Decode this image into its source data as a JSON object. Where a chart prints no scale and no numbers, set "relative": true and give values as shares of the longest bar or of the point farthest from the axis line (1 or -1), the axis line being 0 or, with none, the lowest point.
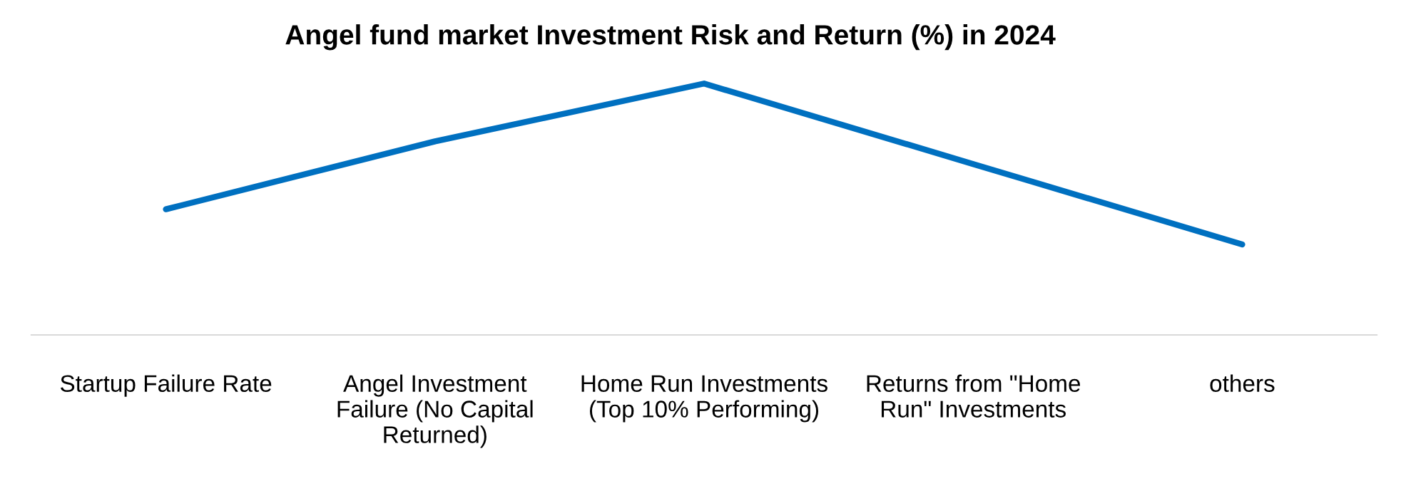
{
  "chart_data": {
    "type": "line",
    "title": "Angel fund market Investment Risk and Return (%) in 2024",
    "categories": [
      "Startup Failure Rate",
      "Angel Investment Failure (No Capital Returned)",
      "Home Run Investments (Top 10% Performing)",
      "Returns from \"Home Run\" Investments",
      "others"
    ],
    "series": [
      {
        "color": "#0070c0",
        "values": [
          0.5,
          0.77,
          1,
          0.68,
          0.36
        ]
      }
    ],
    "relative": true,
    "grid": false,
    "legend": false,
    "marker": "none",
    "line_style": "solid"
  }
}
